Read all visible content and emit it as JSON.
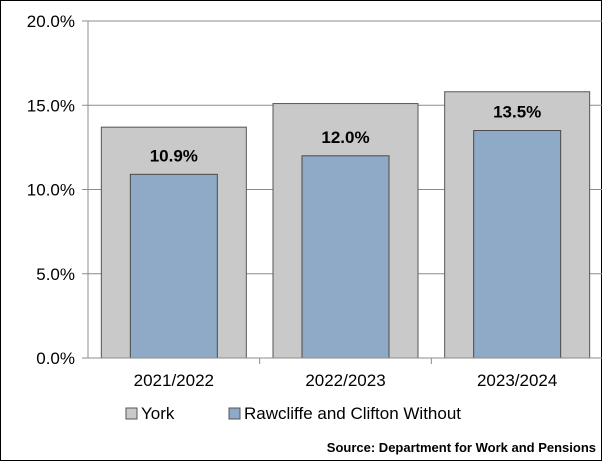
{
  "chart_data": {
    "type": "bar",
    "categories": [
      "2021/2022",
      "2022/2023",
      "2023/2024"
    ],
    "series": [
      {
        "name": "York",
        "values": [
          13.7,
          15.1,
          15.8
        ],
        "color": "#c9c9c9"
      },
      {
        "name": "Rawcliffe and Clifton Without",
        "values": [
          10.9,
          12.0,
          13.5
        ],
        "color": "#8eaac6"
      }
    ],
    "data_labels": [
      "10.9%",
      "12.0%",
      "13.5%"
    ],
    "y_ticks": [
      "0.0%",
      "5.0%",
      "10.0%",
      "15.0%",
      "20.0%"
    ],
    "ylim": [
      0,
      20
    ],
    "y_unit": "%",
    "grid": true,
    "legend_position": "bottom",
    "source": "Source: Department for Work and Pensions"
  }
}
